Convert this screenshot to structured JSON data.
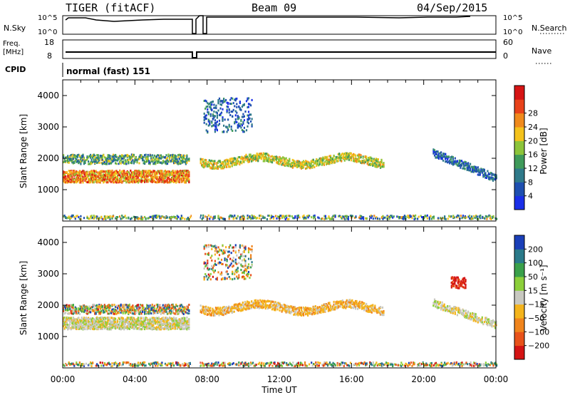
{
  "header": {
    "radar": "TIGER (fitACF)",
    "beam": "Beam 09",
    "date": "04/Sep/2015"
  },
  "noise_panel": {
    "left_label": "N.Sky",
    "left_ticks": [
      "10^5",
      "10^0"
    ],
    "right_label": "N.Search",
    "right_ticks": [
      "10^5",
      "10^0"
    ]
  },
  "freq_panel": {
    "left_label_1": "Freq.",
    "left_label_2": "[MHz]",
    "left_ticks": [
      "18",
      "8"
    ],
    "right_label": "Nave",
    "right_ticks": [
      "60",
      "0"
    ]
  },
  "cpid": {
    "label": "CPID",
    "value": "normal (fast) 151"
  },
  "chart_data": [
    {
      "type": "heatmap",
      "name": "power",
      "ylabel": "Slant Range [km]",
      "yticks": [
        1000,
        2000,
        3000,
        4000
      ],
      "ylim": [
        0,
        4500
      ],
      "xlim_hours": [
        0,
        24
      ],
      "colorbar": {
        "label": "Power [dB]",
        "ticks": [
          "4",
          "8",
          "12",
          "16",
          "20",
          "24",
          "28"
        ],
        "colors": [
          "#1a2fe8",
          "#1e4fb0",
          "#2f7a8a",
          "#3f9a5a",
          "#8cc43a",
          "#f4c21c",
          "#f08a1c",
          "#e8421a",
          "#d61414"
        ]
      }
    },
    {
      "type": "heatmap",
      "name": "velocity",
      "ylabel": "Slant Range [km]",
      "yticks": [
        1000,
        2000,
        3000,
        4000
      ],
      "ylim": [
        0,
        4500
      ],
      "xlim_hours": [
        0,
        24
      ],
      "colorbar": {
        "label": "Velocity [m s⁻¹]",
        "ticks": [
          "200",
          "100",
          "50",
          "15",
          "−15",
          "−50",
          "−100",
          "−200"
        ],
        "colors": [
          "#1a3fb8",
          "#2a7a8a",
          "#3aa04a",
          "#8ccf3a",
          "#c8c8c0",
          "#f4b41c",
          "#f0841c",
          "#e8521a",
          "#d41414"
        ]
      }
    }
  ],
  "xaxis": {
    "label": "Time UT",
    "ticks": [
      "00:00",
      "04:00",
      "08:00",
      "12:00",
      "16:00",
      "20:00",
      "00:00"
    ]
  }
}
